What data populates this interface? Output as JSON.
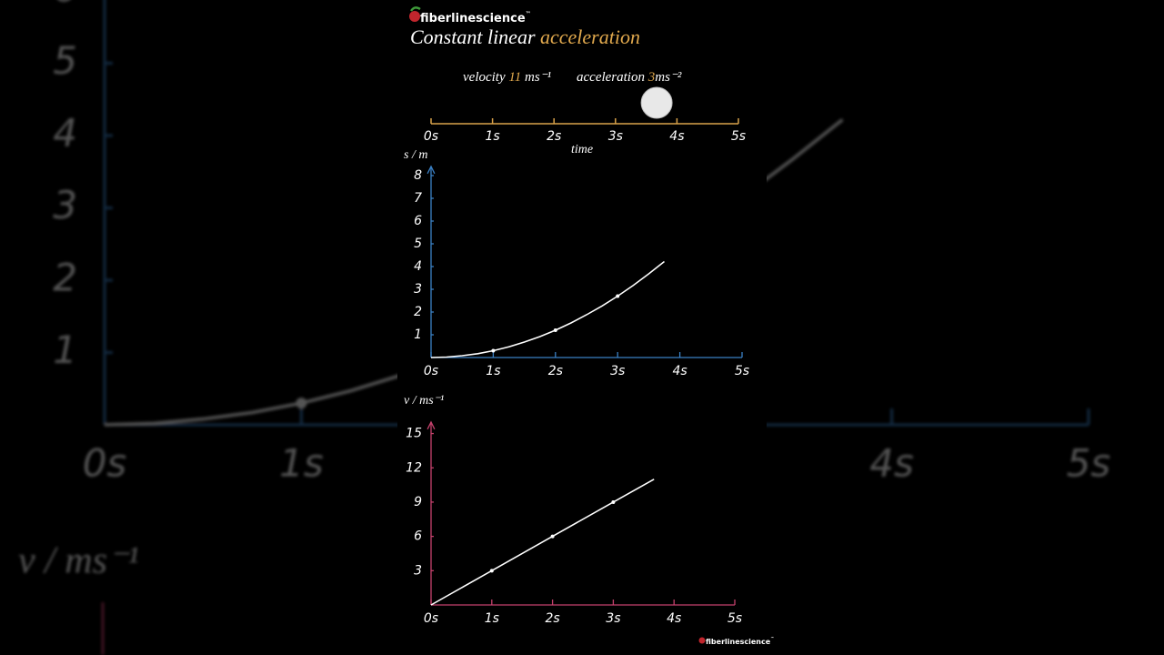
{
  "header": {
    "brand": "fiberlinescience",
    "brand_mark": "™",
    "title_prefix": "Constant linear",
    "title_highlight": "acceleration"
  },
  "readout": {
    "velocity_label": "velocity",
    "velocity_value": 11,
    "velocity_unit": "ms⁻¹",
    "acceleration_label": "acceleration",
    "acceleration_value": 3,
    "acceleration_unit": "ms⁻²"
  },
  "timeline": {
    "label": "time",
    "xlim": [
      0,
      5
    ],
    "ticks": [
      {
        "value": 0,
        "label": "0s"
      },
      {
        "value": 1,
        "label": "1s"
      },
      {
        "value": 2,
        "label": "2s"
      },
      {
        "value": 3,
        "label": "3s"
      },
      {
        "value": 4,
        "label": "4s"
      },
      {
        "value": 5,
        "label": "5s"
      }
    ],
    "ball_time": 3.67,
    "color": "#d9a24a"
  },
  "chart_data": [
    {
      "type": "line",
      "y_label": "s / m",
      "axis_color": "#3a80c4",
      "color": "#ffffff",
      "xlim": [
        0,
        5
      ],
      "ylim": [
        0,
        8.4
      ],
      "xticks": [
        {
          "value": 0,
          "label": "0s"
        },
        {
          "value": 1,
          "label": "1s"
        },
        {
          "value": 2,
          "label": "2s"
        },
        {
          "value": 3,
          "label": "3s"
        },
        {
          "value": 4,
          "label": "4s"
        },
        {
          "value": 5,
          "label": "5s"
        }
      ],
      "yticks": [
        1,
        2,
        3,
        4,
        5,
        6,
        7,
        8
      ],
      "x": [
        0,
        0.25,
        0.5,
        0.75,
        1,
        1.25,
        1.5,
        1.75,
        2,
        2.25,
        2.5,
        2.75,
        3,
        3.25,
        3.5,
        3.75
      ],
      "values": [
        0,
        0.02,
        0.08,
        0.17,
        0.3,
        0.47,
        0.68,
        0.92,
        1.2,
        1.52,
        1.88,
        2.27,
        2.7,
        3.17,
        3.68,
        4.22
      ]
    },
    {
      "type": "line",
      "y_label": "v / ms⁻¹",
      "axis_color": "#c4416c",
      "color": "#ffffff",
      "xlim": [
        0,
        5
      ],
      "ylim": [
        0,
        16
      ],
      "xticks": [
        {
          "value": 0,
          "label": "0s"
        },
        {
          "value": 1,
          "label": "1s"
        },
        {
          "value": 2,
          "label": "2s"
        },
        {
          "value": 3,
          "label": "3s"
        },
        {
          "value": 4,
          "label": "4s"
        },
        {
          "value": 5,
          "label": "5s"
        }
      ],
      "yticks": [
        3,
        6,
        9,
        12,
        15
      ],
      "x": [
        0,
        1,
        2,
        3,
        3.67
      ],
      "values": [
        0,
        3,
        6,
        9,
        11
      ]
    }
  ],
  "footer": {
    "brand": "fiberlinescience",
    "brand_mark": "™"
  }
}
